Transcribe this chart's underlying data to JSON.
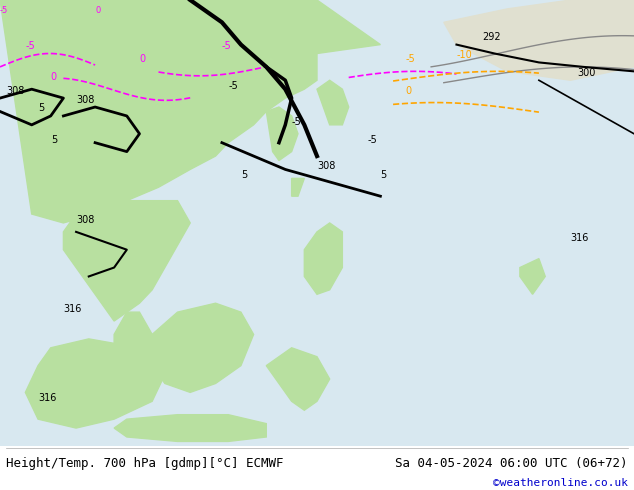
{
  "footer_left": "Height/Temp. 700 hPa [gdmp][°C] ECMWF",
  "footer_right": "Sa 04-05-2024 06:00 UTC (06+72)",
  "footer_url": "©weatheronline.co.uk",
  "footer_text_color": "#000000",
  "footer_url_color": "#0000cc",
  "bg_color": "#ffffff",
  "map_bg_color": "#d8e8f0",
  "land_color_green": "#b8e0a0",
  "land_color_light": "#e8f0e0",
  "footer_fontsize": 9,
  "url_fontsize": 8,
  "fig_width": 6.34,
  "fig_height": 4.9,
  "dpi": 100
}
